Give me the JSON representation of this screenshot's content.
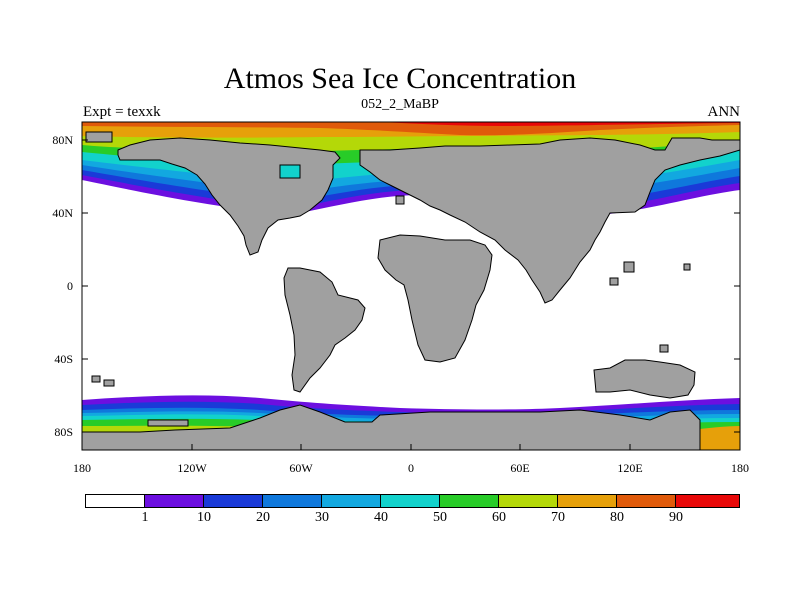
{
  "title": "Atmos Sea Ice Concentration",
  "subtitle_left": "Expt = texxk",
  "subtitle_center": "052_2_MaBP",
  "subtitle_right": "ANN",
  "y_ticks": [
    "80N",
    "40N",
    "0",
    "40S",
    "80S"
  ],
  "x_ticks": [
    "180",
    "120W",
    "60W",
    "0",
    "60E",
    "120E",
    "180"
  ],
  "colorbar": {
    "labels": [
      "1",
      "10",
      "20",
      "30",
      "40",
      "50",
      "60",
      "70",
      "80",
      "90"
    ],
    "colors": [
      "#ffffff",
      "#6c0fe0",
      "#1a3ad8",
      "#0f78dc",
      "#12a8e0",
      "#12d2cc",
      "#28cc28",
      "#b4d808",
      "#e6a00a",
      "#e05a0a",
      "#e80808"
    ]
  },
  "colors": {
    "land": "#a0a0a0",
    "ocean": "#ffffff"
  }
}
